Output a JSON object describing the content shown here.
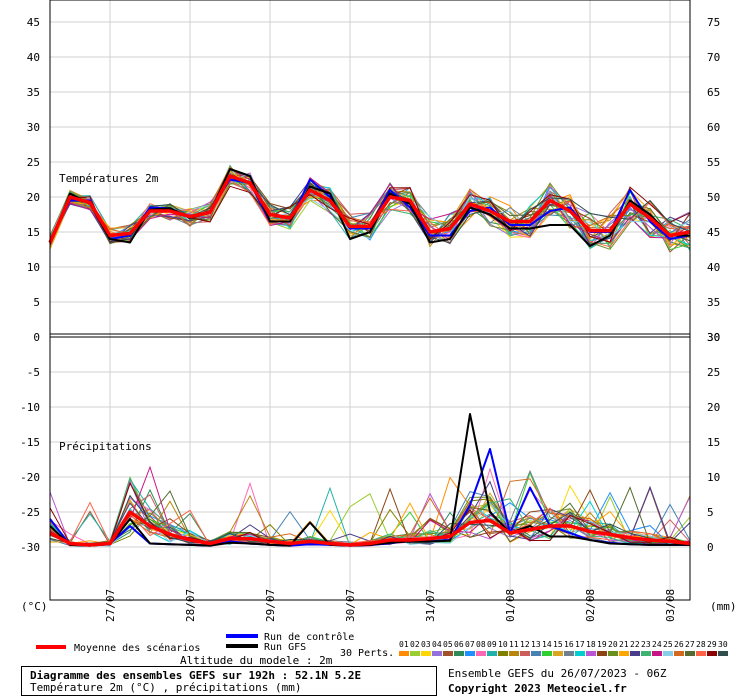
{
  "chart_data": [
    {
      "type": "line",
      "panel_label": "Températures 2m",
      "unit_left": "°C",
      "y_ticks_left": [
        45,
        40,
        35,
        30,
        25,
        20,
        15,
        10,
        5,
        0
      ],
      "y_ticks_right": [
        75,
        70,
        65,
        60,
        55,
        50,
        45,
        40,
        35,
        30
      ],
      "ylim": [
        0,
        45
      ],
      "x_labels": [
        "27/07",
        "28/07",
        "29/07",
        "30/07",
        "31/07",
        "01/08",
        "02/08",
        "03/08"
      ],
      "x_steps_6h": [
        0,
        1,
        2,
        3,
        4,
        5,
        6,
        7,
        8,
        9,
        10,
        11,
        12,
        13,
        14,
        15,
        16,
        17,
        18,
        19,
        20,
        21,
        22,
        23,
        24,
        25,
        26,
        27,
        28,
        29,
        30,
        31,
        32
      ],
      "series": [
        {
          "name": "Moyenne des scénarios",
          "color": "#ff0000",
          "values": [
            13.5,
            20.0,
            19.2,
            14.5,
            14.8,
            18.0,
            18.0,
            17.2,
            17.8,
            23.0,
            22.0,
            17.5,
            17.0,
            21.0,
            19.5,
            15.8,
            15.8,
            20.0,
            19.5,
            15.0,
            15.5,
            19.0,
            18.0,
            16.5,
            16.5,
            19.5,
            18.0,
            15.2,
            15.2,
            19.0,
            17.0,
            14.5,
            15.0
          ]
        },
        {
          "name": "Run de contrôle",
          "color": "#0000ff",
          "values": [
            13.6,
            19.5,
            19.5,
            14.0,
            14.5,
            18.5,
            18.4,
            17.0,
            18.0,
            22.5,
            22.0,
            16.5,
            16.5,
            22.5,
            20.0,
            15.5,
            15.5,
            21.0,
            18.5,
            14.5,
            14.5,
            18.0,
            18.5,
            16.0,
            16.0,
            18.0,
            18.5,
            15.0,
            15.0,
            21.0,
            16.5,
            14.0,
            14.5
          ]
        },
        {
          "name": "Run GFS",
          "color": "#000000",
          "values": [
            13.4,
            20.5,
            19.0,
            14.0,
            13.5,
            18.2,
            18.4,
            17.0,
            17.8,
            24.0,
            23.0,
            16.5,
            16.5,
            21.5,
            20.5,
            14.0,
            15.0,
            20.5,
            19.0,
            13.5,
            14.0,
            18.5,
            17.5,
            15.5,
            15.5,
            16.0,
            16.0,
            13.0,
            14.5,
            19.5,
            17.5,
            14.5,
            14.5
          ]
        }
      ]
    },
    {
      "type": "line",
      "panel_label": "Précipitations",
      "unit_left": "(°C)",
      "unit_right": "(mm)",
      "y_ticks_left": [
        -5,
        -10,
        -15,
        -20,
        -25,
        -30
      ],
      "y_ticks_right": [
        30,
        25,
        20,
        15,
        10,
        5,
        0
      ],
      "ylim": [
        0,
        30
      ],
      "series": [
        {
          "name": "Moyenne des scénarios",
          "color": "#ff0000",
          "values": [
            2.0,
            0.5,
            0.3,
            0.5,
            5.0,
            3.0,
            1.8,
            1.0,
            0.5,
            1.2,
            1.2,
            0.8,
            0.5,
            0.8,
            0.5,
            0.3,
            0.5,
            1.0,
            1.0,
            1.2,
            1.5,
            3.5,
            3.8,
            2.0,
            2.5,
            3.0,
            3.0,
            2.2,
            1.8,
            1.3,
            1.0,
            0.8,
            0.5
          ]
        },
        {
          "name": "Run de contrôle",
          "color": "#0000ff",
          "values": [
            4.0,
            0.3,
            0.2,
            0.5,
            3.0,
            0.5,
            0.4,
            0.3,
            0.2,
            0.8,
            0.5,
            0.3,
            0.2,
            0.4,
            0.3,
            0.2,
            0.3,
            0.5,
            1.0,
            0.8,
            1.0,
            6.0,
            14.0,
            2.0,
            8.5,
            3.0,
            2.0,
            1.0,
            0.6,
            0.4,
            0.3,
            0.3,
            0.3
          ]
        },
        {
          "name": "Run GFS",
          "color": "#000000",
          "values": [
            3.0,
            0.3,
            0.2,
            0.4,
            4.0,
            0.5,
            0.4,
            0.3,
            0.2,
            0.6,
            0.5,
            0.3,
            0.2,
            3.5,
            0.3,
            0.2,
            0.3,
            0.6,
            0.8,
            0.8,
            0.9,
            19.0,
            5.0,
            2.0,
            3.0,
            1.5,
            1.5,
            1.0,
            0.5,
            0.4,
            0.3,
            0.3,
            0.3
          ]
        }
      ]
    }
  ],
  "legend": {
    "mean": "Moyenne des scénarios",
    "control": "Run de contrôle",
    "gfs": "Run GFS",
    "perts": "30 Perts.",
    "pert_ids": [
      "01",
      "02",
      "03",
      "04",
      "05",
      "06",
      "07",
      "08",
      "09",
      "10",
      "11",
      "12",
      "13",
      "14",
      "15",
      "16",
      "17",
      "18",
      "19",
      "20",
      "21",
      "22",
      "23",
      "24",
      "25",
      "26",
      "27",
      "28",
      "29",
      "30"
    ],
    "pert_colors": [
      "#ff8c00",
      "#9acd32",
      "#ffd700",
      "#9370db",
      "#a0522d",
      "#2e8b57",
      "#1e90ff",
      "#ff69b4",
      "#20b2aa",
      "#808000",
      "#b8860b",
      "#cd5c5c",
      "#4682b4",
      "#32cd32",
      "#daa520",
      "#708090",
      "#00ced1",
      "#ba55d3",
      "#8b4513",
      "#6b8e23",
      "#ffa500",
      "#483d8b",
      "#3cb371",
      "#c71585",
      "#87ceeb",
      "#d2691e",
      "#556b2f",
      "#ff6347",
      "#8b0000",
      "#2f4f4f"
    ],
    "mean_color": "#ff0000",
    "control_color": "#0000ff",
    "gfs_color": "#000000"
  },
  "altitude_note": "Altitude du modele : 2m",
  "footer": {
    "title": "Diagramme des ensembles GEFS sur 192h : 52.1N 5.2E",
    "subtitle": "Température 2m (°C) , précipitations (mm)",
    "run_info": "Ensemble GEFS du 26/07/2023 - 06Z",
    "copyright": "Copyright 2023 Meteociel.fr"
  }
}
